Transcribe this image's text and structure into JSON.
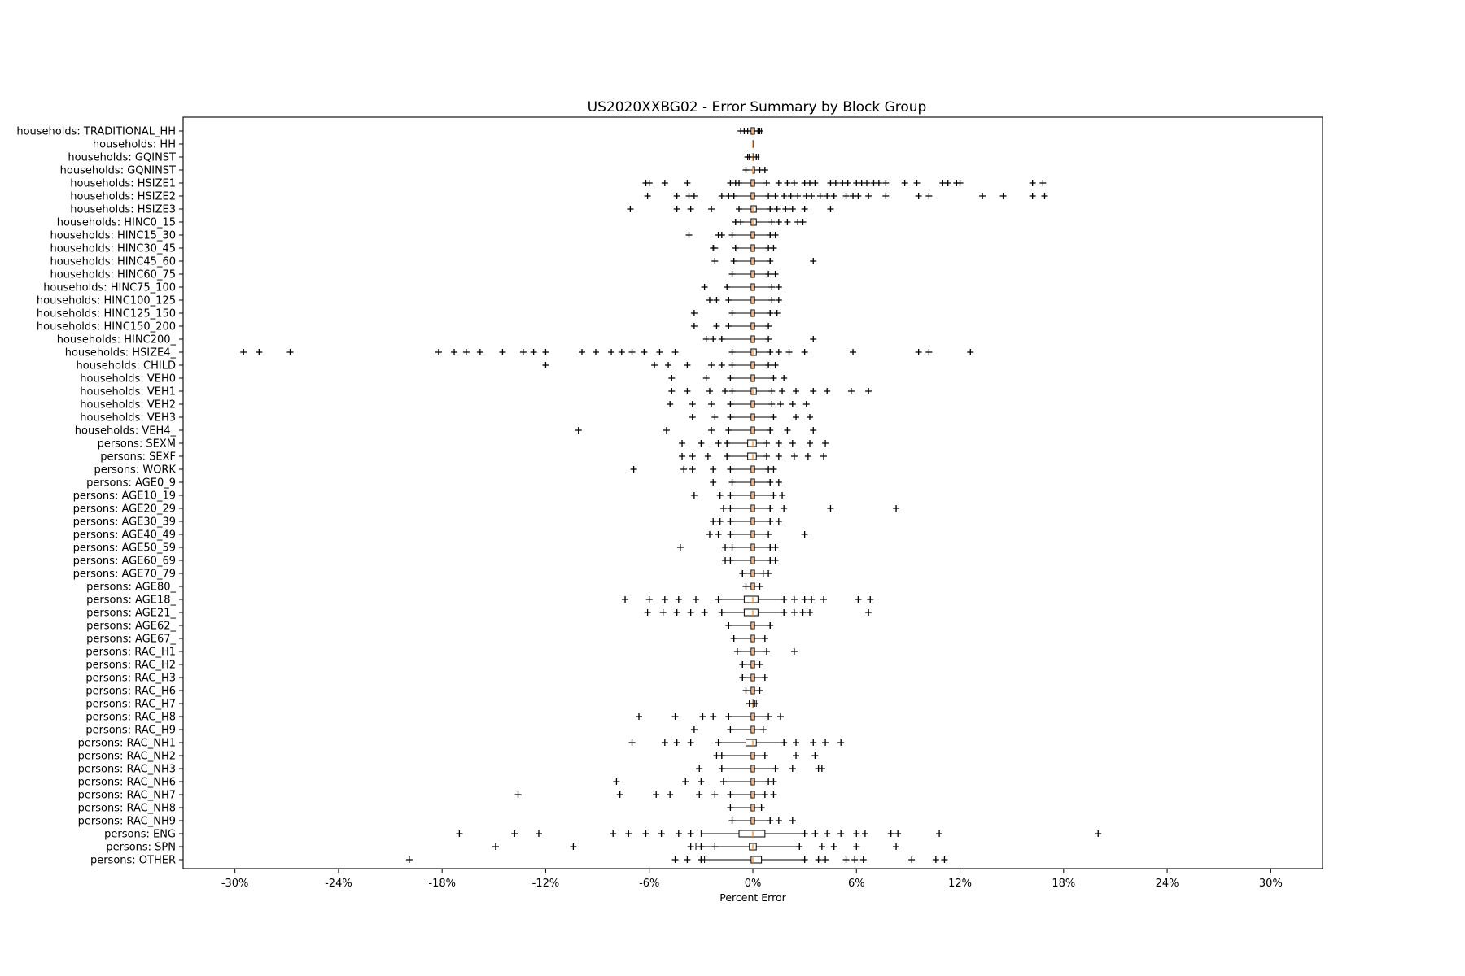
{
  "chart_data": {
    "type": "boxplot",
    "orientation": "horizontal",
    "title": "US2020XXBG02 - Error Summary by Block Group",
    "xlabel": "Percent Error",
    "ylabel": "",
    "xlim": [
      -33,
      33
    ],
    "xticks": [
      -30,
      -24,
      -18,
      -12,
      -6,
      0,
      6,
      12,
      18,
      24,
      30
    ],
    "xtick_labels": [
      "-30%",
      "-24%",
      "-18%",
      "-12%",
      "-6%",
      "0%",
      "6%",
      "12%",
      "18%",
      "24%",
      "30%"
    ],
    "grid": false,
    "legend": "none",
    "colors": {
      "box": "#000000",
      "median": "#ff7f0e",
      "flier": "#000000"
    },
    "categories": [
      "households: TRADITIONAL_HH",
      "households: HH",
      "households: GQINST",
      "households: GQNINST",
      "households: HSIZE1",
      "households: HSIZE2",
      "households: HSIZE3",
      "households: HINC0_15",
      "households: HINC15_30",
      "households: HINC30_45",
      "households: HINC45_60",
      "households: HINC60_75",
      "households: HINC75_100",
      "households: HINC100_125",
      "households: HINC125_150",
      "households: HINC150_200",
      "households: HINC200_",
      "households: HSIZE4_",
      "households: CHILD",
      "households: VEH0",
      "households: VEH1",
      "households: VEH2",
      "households: VEH3",
      "households: VEH4_",
      "persons: SEXM",
      "persons: SEXF",
      "persons: WORK",
      "persons: AGE0_9",
      "persons: AGE10_19",
      "persons: AGE20_29",
      "persons: AGE30_39",
      "persons: AGE40_49",
      "persons: AGE50_59",
      "persons: AGE60_69",
      "persons: AGE70_79",
      "persons: AGE80_",
      "persons: AGE18_",
      "persons: AGE21_",
      "persons: AGE62_",
      "persons: AGE67_",
      "persons: RAC_H1",
      "persons: RAC_H2",
      "persons: RAC_H3",
      "persons: RAC_H6",
      "persons: RAC_H7",
      "persons: RAC_H8",
      "persons: RAC_H9",
      "persons: RAC_NH1",
      "persons: RAC_NH2",
      "persons: RAC_NH3",
      "persons: RAC_NH6",
      "persons: RAC_NH7",
      "persons: RAC_NH8",
      "persons: RAC_NH9",
      "persons: ENG",
      "persons: SPN",
      "persons: OTHER"
    ],
    "series": [
      {
        "whisker_low": -0.7,
        "q1": -0.1,
        "median": 0.0,
        "q3": 0.1,
        "whisker_high": 0.5,
        "fliers": [
          -0.7,
          -0.5,
          -0.3,
          0.3,
          0.4
        ]
      },
      {
        "whisker_low": 0.0,
        "q1": 0.0,
        "median": 0.0,
        "q3": 0.0,
        "whisker_high": 0.0,
        "fliers": []
      },
      {
        "whisker_low": -0.3,
        "q1": 0.0,
        "median": 0.0,
        "q3": 0.0,
        "whisker_high": 0.3,
        "fliers": [
          -0.3,
          -0.2,
          0.2
        ]
      },
      {
        "whisker_low": -0.4,
        "q1": 0.0,
        "median": 0.0,
        "q3": 0.1,
        "whisker_high": 0.7,
        "fliers": [
          -0.4,
          0.4,
          0.7
        ]
      },
      {
        "whisker_low": -1.2,
        "q1": -0.1,
        "median": 0.0,
        "q3": 0.1,
        "whisker_high": 0.8,
        "fliers": [
          -6.2,
          -6.0,
          -5.1,
          -3.8,
          -1.3,
          -1.0,
          -0.8,
          0.8,
          1.5,
          2.0,
          2.4,
          3.0,
          3.3,
          3.6,
          4.5,
          4.8,
          5.2,
          5.5,
          6.0,
          6.3,
          6.6,
          7.0,
          7.3,
          7.7,
          8.8,
          9.5,
          11.0,
          11.3,
          11.8,
          12.0,
          16.2,
          16.8
        ]
      },
      {
        "whisker_low": -1.1,
        "q1": -0.1,
        "median": 0.0,
        "q3": 0.1,
        "whisker_high": 0.9,
        "fliers": [
          -6.1,
          -4.4,
          -3.7,
          -3.4,
          -1.8,
          -1.4,
          -1.1,
          0.9,
          1.3,
          1.8,
          2.2,
          2.6,
          3.1,
          3.4,
          3.9,
          4.3,
          4.7,
          5.4,
          5.8,
          6.1,
          6.7,
          7.7,
          9.6,
          10.2,
          13.3,
          14.5,
          16.2,
          16.9
        ]
      },
      {
        "whisker_low": -0.8,
        "q1": -0.1,
        "median": 0.0,
        "q3": 0.2,
        "whisker_high": 1.0,
        "fliers": [
          -7.1,
          -4.4,
          -3.6,
          -2.4,
          -0.8,
          1.0,
          1.4,
          1.9,
          2.3,
          3.0,
          4.5
        ]
      },
      {
        "whisker_low": -1.0,
        "q1": -0.1,
        "median": 0.0,
        "q3": 0.2,
        "whisker_high": 1.1,
        "fliers": [
          -1.0,
          -0.7,
          1.1,
          1.5,
          2.0,
          2.6,
          2.9
        ]
      },
      {
        "whisker_low": -1.2,
        "q1": -0.1,
        "median": 0.0,
        "q3": 0.1,
        "whisker_high": 1.0,
        "fliers": [
          -3.7,
          -2.0,
          -1.8,
          -1.2,
          1.0,
          1.3
        ]
      },
      {
        "whisker_low": -1.0,
        "q1": -0.1,
        "median": 0.0,
        "q3": 0.1,
        "whisker_high": 0.9,
        "fliers": [
          -2.3,
          -2.2,
          -1.0,
          0.9,
          1.2
        ]
      },
      {
        "whisker_low": -1.1,
        "q1": -0.1,
        "median": 0.0,
        "q3": 0.1,
        "whisker_high": 1.0,
        "fliers": [
          -2.2,
          -1.1,
          1.0,
          3.5
        ]
      },
      {
        "whisker_low": -1.2,
        "q1": -0.1,
        "median": 0.0,
        "q3": 0.1,
        "whisker_high": 0.9,
        "fliers": [
          -1.2,
          0.9,
          1.3
        ]
      },
      {
        "whisker_low": -1.5,
        "q1": -0.1,
        "median": 0.0,
        "q3": 0.1,
        "whisker_high": 1.1,
        "fliers": [
          -2.8,
          -1.5,
          1.1,
          1.5
        ]
      },
      {
        "whisker_low": -1.4,
        "q1": -0.1,
        "median": 0.0,
        "q3": 0.1,
        "whisker_high": 1.1,
        "fliers": [
          -2.5,
          -2.1,
          -1.4,
          1.1,
          1.5
        ]
      },
      {
        "whisker_low": -1.2,
        "q1": -0.1,
        "median": 0.0,
        "q3": 0.1,
        "whisker_high": 1.0,
        "fliers": [
          -3.4,
          -1.2,
          1.0,
          1.4
        ]
      },
      {
        "whisker_low": -1.4,
        "q1": -0.1,
        "median": 0.0,
        "q3": 0.1,
        "whisker_high": 0.9,
        "fliers": [
          -3.4,
          -2.1,
          -1.4,
          0.9
        ]
      },
      {
        "whisker_low": -1.8,
        "q1": -0.1,
        "median": 0.0,
        "q3": 0.1,
        "whisker_high": 0.9,
        "fliers": [
          -2.7,
          -2.3,
          -1.8,
          0.9,
          3.5
        ]
      },
      {
        "whisker_low": -1.2,
        "q1": -0.1,
        "median": 0.0,
        "q3": 0.2,
        "whisker_high": 1.0,
        "fliers": [
          -29.5,
          -28.6,
          -26.8,
          -18.2,
          -17.3,
          -16.6,
          -15.8,
          -14.5,
          -13.3,
          -12.7,
          -12.0,
          -9.9,
          -9.1,
          -8.2,
          -7.6,
          -7.0,
          -6.3,
          -5.4,
          -4.5,
          -1.2,
          1.0,
          1.5,
          2.1,
          3.0,
          5.8,
          9.6,
          10.2,
          12.6
        ]
      },
      {
        "whisker_low": -1.2,
        "q1": -0.1,
        "median": 0.0,
        "q3": 0.1,
        "whisker_high": 0.9,
        "fliers": [
          -12.0,
          -5.7,
          -4.9,
          -3.8,
          -2.4,
          -1.8,
          -1.2,
          0.9,
          1.3
        ]
      },
      {
        "whisker_low": -1.3,
        "q1": -0.1,
        "median": 0.0,
        "q3": 0.1,
        "whisker_high": 1.2,
        "fliers": [
          -4.7,
          -2.7,
          -1.3,
          1.2,
          1.8
        ]
      },
      {
        "whisker_low": -1.2,
        "q1": -0.1,
        "median": 0.0,
        "q3": 0.2,
        "whisker_high": 1.1,
        "fliers": [
          -4.7,
          -3.8,
          -2.5,
          -1.6,
          -1.2,
          1.1,
          1.7,
          2.5,
          3.5,
          4.3,
          5.7,
          6.7
        ]
      },
      {
        "whisker_low": -1.3,
        "q1": -0.1,
        "median": 0.0,
        "q3": 0.1,
        "whisker_high": 1.1,
        "fliers": [
          -4.8,
          -3.5,
          -2.4,
          -1.3,
          1.1,
          1.6,
          2.3,
          3.1
        ]
      },
      {
        "whisker_low": -1.3,
        "q1": -0.1,
        "median": 0.0,
        "q3": 0.1,
        "whisker_high": 1.2,
        "fliers": [
          -3.5,
          -2.2,
          -1.3,
          1.2,
          2.5,
          3.3
        ]
      },
      {
        "whisker_low": -1.4,
        "q1": -0.1,
        "median": 0.0,
        "q3": 0.1,
        "whisker_high": 1.0,
        "fliers": [
          -10.1,
          -5.0,
          -2.4,
          -1.4,
          1.0,
          2.0,
          3.5
        ]
      },
      {
        "whisker_low": -1.5,
        "q1": -0.3,
        "median": 0.0,
        "q3": 0.2,
        "whisker_high": 0.8,
        "fliers": [
          -4.1,
          -3.0,
          -2.0,
          -1.5,
          0.8,
          1.5,
          2.3,
          3.3,
          4.2
        ]
      },
      {
        "whisker_low": -1.5,
        "q1": -0.3,
        "median": 0.0,
        "q3": 0.2,
        "whisker_high": 0.8,
        "fliers": [
          -4.1,
          -3.5,
          -2.6,
          -1.5,
          0.8,
          1.5,
          2.4,
          3.2,
          4.1
        ]
      },
      {
        "whisker_low": -1.3,
        "q1": -0.1,
        "median": 0.0,
        "q3": 0.1,
        "whisker_high": 0.9,
        "fliers": [
          -6.9,
          -4.0,
          -3.5,
          -2.3,
          -1.3,
          0.9,
          1.2
        ]
      },
      {
        "whisker_low": -1.2,
        "q1": -0.1,
        "median": 0.0,
        "q3": 0.1,
        "whisker_high": 1.0,
        "fliers": [
          -2.3,
          -1.2,
          1.0,
          1.5
        ]
      },
      {
        "whisker_low": -1.3,
        "q1": -0.1,
        "median": 0.0,
        "q3": 0.1,
        "whisker_high": 1.2,
        "fliers": [
          -3.4,
          -1.9,
          -1.3,
          1.2,
          1.7
        ]
      },
      {
        "whisker_low": -1.3,
        "q1": -0.1,
        "median": 0.0,
        "q3": 0.1,
        "whisker_high": 1.0,
        "fliers": [
          -1.7,
          -1.3,
          1.0,
          1.8,
          4.5,
          8.3
        ]
      },
      {
        "whisker_low": -1.3,
        "q1": -0.1,
        "median": 0.0,
        "q3": 0.1,
        "whisker_high": 1.0,
        "fliers": [
          -2.3,
          -1.9,
          -1.3,
          1.0,
          1.5
        ]
      },
      {
        "whisker_low": -1.3,
        "q1": -0.1,
        "median": 0.0,
        "q3": 0.1,
        "whisker_high": 0.9,
        "fliers": [
          -2.5,
          -2.0,
          -1.3,
          0.9,
          3.0
        ]
      },
      {
        "whisker_low": -1.2,
        "q1": -0.1,
        "median": 0.0,
        "q3": 0.1,
        "whisker_high": 1.0,
        "fliers": [
          -4.2,
          -1.6,
          -1.2,
          1.0,
          1.3
        ]
      },
      {
        "whisker_low": -1.3,
        "q1": -0.1,
        "median": 0.0,
        "q3": 0.1,
        "whisker_high": 1.0,
        "fliers": [
          -1.6,
          -1.3,
          1.0,
          1.3
        ]
      },
      {
        "whisker_low": -0.6,
        "q1": -0.1,
        "median": 0.0,
        "q3": 0.1,
        "whisker_high": 0.6,
        "fliers": [
          -0.6,
          0.6,
          0.9
        ]
      },
      {
        "whisker_low": -0.4,
        "q1": -0.1,
        "median": 0.0,
        "q3": 0.1,
        "whisker_high": 0.4,
        "fliers": [
          -0.4,
          0.4
        ]
      },
      {
        "whisker_low": -2.0,
        "q1": -0.5,
        "median": 0.0,
        "q3": 0.3,
        "whisker_high": 1.8,
        "fliers": [
          -7.4,
          -6.0,
          -5.1,
          -4.3,
          -3.3,
          -2.0,
          1.8,
          2.4,
          3.0,
          3.4,
          4.1,
          6.1,
          6.8
        ]
      },
      {
        "whisker_low": -1.8,
        "q1": -0.5,
        "median": 0.0,
        "q3": 0.3,
        "whisker_high": 1.8,
        "fliers": [
          -6.1,
          -5.2,
          -4.4,
          -3.6,
          -2.8,
          -1.8,
          1.8,
          2.4,
          2.9,
          3.3,
          6.7
        ]
      },
      {
        "whisker_low": -1.4,
        "q1": -0.1,
        "median": 0.0,
        "q3": 0.1,
        "whisker_high": 1.0,
        "fliers": [
          -1.4,
          1.0
        ]
      },
      {
        "whisker_low": -1.1,
        "q1": -0.1,
        "median": 0.0,
        "q3": 0.1,
        "whisker_high": 0.7,
        "fliers": [
          -1.1,
          0.7
        ]
      },
      {
        "whisker_low": -0.9,
        "q1": -0.1,
        "median": 0.0,
        "q3": 0.1,
        "whisker_high": 0.8,
        "fliers": [
          -0.9,
          0.8,
          2.4
        ]
      },
      {
        "whisker_low": -0.6,
        "q1": -0.1,
        "median": 0.0,
        "q3": 0.1,
        "whisker_high": 0.4,
        "fliers": [
          -0.6,
          0.4
        ]
      },
      {
        "whisker_low": -0.6,
        "q1": -0.1,
        "median": 0.0,
        "q3": 0.1,
        "whisker_high": 0.7,
        "fliers": [
          -0.6,
          0.7
        ]
      },
      {
        "whisker_low": -0.4,
        "q1": -0.1,
        "median": 0.0,
        "q3": 0.1,
        "whisker_high": 0.4,
        "fliers": [
          -0.4,
          0.4
        ]
      },
      {
        "whisker_low": -0.2,
        "q1": 0.0,
        "median": 0.0,
        "q3": 0.0,
        "whisker_high": 0.2,
        "fliers": [
          -0.2,
          0.1
        ]
      },
      {
        "whisker_low": -1.4,
        "q1": -0.1,
        "median": 0.0,
        "q3": 0.1,
        "whisker_high": 0.9,
        "fliers": [
          -6.6,
          -4.5,
          -2.9,
          -2.3,
          -1.4,
          0.9,
          1.6
        ]
      },
      {
        "whisker_low": -1.3,
        "q1": -0.1,
        "median": 0.0,
        "q3": 0.1,
        "whisker_high": 0.6,
        "fliers": [
          -3.4,
          -1.3,
          0.6
        ]
      },
      {
        "whisker_low": -2.0,
        "q1": -0.4,
        "median": 0.0,
        "q3": 0.2,
        "whisker_high": 1.8,
        "fliers": [
          -7.0,
          -5.1,
          -4.4,
          -3.6,
          -2.0,
          1.8,
          2.5,
          3.5,
          4.2,
          5.1
        ]
      },
      {
        "whisker_low": -1.8,
        "q1": -0.1,
        "median": 0.0,
        "q3": 0.1,
        "whisker_high": 0.7,
        "fliers": [
          -2.1,
          -1.8,
          0.7,
          2.5,
          3.6
        ]
      },
      {
        "whisker_low": -1.8,
        "q1": -0.1,
        "median": 0.0,
        "q3": 0.1,
        "whisker_high": 1.3,
        "fliers": [
          -3.1,
          -1.8,
          1.3,
          2.3,
          3.8,
          4.0
        ]
      },
      {
        "whisker_low": -1.7,
        "q1": -0.1,
        "median": 0.0,
        "q3": 0.1,
        "whisker_high": 0.9,
        "fliers": [
          -7.9,
          -3.9,
          -3.0,
          -1.7,
          0.9,
          1.2
        ]
      },
      {
        "whisker_low": -1.3,
        "q1": -0.1,
        "median": 0.0,
        "q3": 0.1,
        "whisker_high": 0.7,
        "fliers": [
          -13.6,
          -7.7,
          -5.6,
          -4.8,
          -3.1,
          -2.2,
          -1.3,
          0.7,
          1.2
        ]
      },
      {
        "whisker_low": -1.3,
        "q1": -0.1,
        "median": 0.0,
        "q3": 0.1,
        "whisker_high": 0.5,
        "fliers": [
          -1.3,
          0.5
        ]
      },
      {
        "whisker_low": -1.2,
        "q1": -0.1,
        "median": 0.0,
        "q3": 0.1,
        "whisker_high": 1.0,
        "fliers": [
          -1.2,
          1.0,
          1.5,
          2.3
        ]
      },
      {
        "whisker_low": -3.0,
        "q1": -0.8,
        "median": 0.0,
        "q3": 0.7,
        "whisker_high": 3.0,
        "fliers": [
          -17.0,
          -13.8,
          -12.4,
          -8.1,
          -7.2,
          -6.2,
          -5.3,
          -4.3,
          -3.6,
          3.0,
          3.6,
          4.3,
          5.1,
          6.0,
          6.5,
          8.0,
          8.4,
          10.8,
          20.0
        ]
      },
      {
        "whisker_low": -3.3,
        "q1": -0.2,
        "median": 0.0,
        "q3": 0.2,
        "whisker_high": 2.7,
        "fliers": [
          -14.9,
          -10.4,
          -3.6,
          -3.0,
          -2.2,
          2.7,
          4.0,
          4.7,
          6.0,
          8.3
        ]
      },
      {
        "whisker_low": -2.8,
        "q1": -0.1,
        "median": 0.0,
        "q3": 0.5,
        "whisker_high": 3.0,
        "fliers": [
          -19.9,
          -4.5,
          -3.8,
          -3.0,
          3.0,
          3.8,
          4.2,
          5.4,
          5.9,
          6.4,
          9.2,
          10.6,
          11.1
        ]
      }
    ]
  }
}
